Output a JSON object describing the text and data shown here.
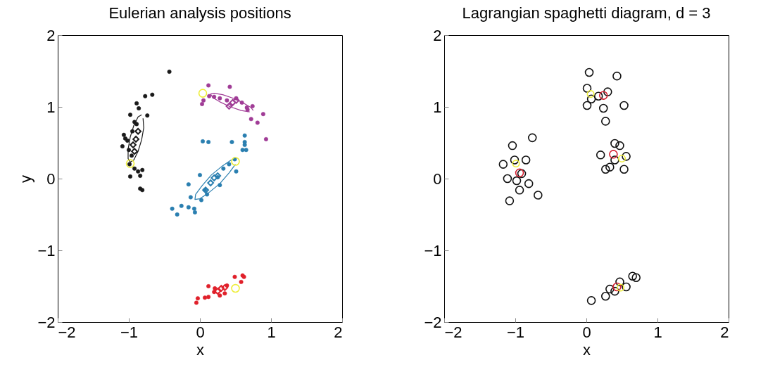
{
  "chart_data": [
    {
      "type": "scatter",
      "title": "Eulerian analysis positions",
      "xlabel": "x",
      "ylabel": "y",
      "xlim": [
        -2,
        2
      ],
      "ylim": [
        -2,
        2
      ],
      "xticks": [
        -2,
        -1,
        0,
        1,
        2
      ],
      "yticks": [
        -2,
        -1,
        0,
        1,
        2
      ],
      "series": [
        {
          "marker": "circle",
          "color": "#1a1a1a",
          "x": [
            -0.43,
            -0.77,
            -0.67,
            -0.89,
            -0.86,
            -0.74,
            -0.98,
            -0.92,
            -0.89,
            -0.95,
            -1.07,
            -1.05,
            -1.09,
            -1.0,
            -0.96,
            -0.99,
            -0.92,
            -0.81,
            -0.84,
            -0.98,
            -0.81,
            -0.84,
            -0.87,
            -1.02
          ],
          "values": [
            1.49,
            1.15,
            1.17,
            1.05,
            0.98,
            0.88,
            0.89,
            0.79,
            0.76,
            0.66,
            0.61,
            0.56,
            0.45,
            0.4,
            0.32,
            0.2,
            0.14,
            0.12,
            0.04,
            0.03,
            -0.16,
            -0.14,
            0.1,
            0.53
          ]
        },
        {
          "marker": "circle",
          "color": "#a03c96",
          "x": [
            0.12,
            0.42,
            0.03,
            0.05,
            0.2,
            0.28,
            0.38,
            0.51,
            0.59,
            0.66,
            0.74,
            0.89,
            0.72,
            0.81,
            0.93,
            0.13,
            0.67
          ],
          "values": [
            1.3,
            1.28,
            1.04,
            1.09,
            1.14,
            1.12,
            1.09,
            1.12,
            1.06,
            0.99,
            1.01,
            0.9,
            0.83,
            0.78,
            0.55,
            1.15,
            0.96
          ]
        },
        {
          "marker": "circle",
          "color": "#2a7fb0",
          "x": [
            0.04,
            0.12,
            0.45,
            0.63,
            0.63,
            0.63,
            0.65,
            0.6,
            0.49,
            0.51,
            0.41,
            0.33,
            0.25,
            0.28,
            0.0,
            -0.16,
            -0.13,
            0.02,
            -0.16,
            -0.26,
            -0.39,
            -0.32,
            -0.08,
            -0.07,
            0.07,
            0.1
          ],
          "values": [
            0.52,
            0.51,
            0.51,
            0.6,
            0.51,
            0.47,
            0.4,
            0.4,
            0.27,
            0.1,
            0.2,
            0.14,
            0.02,
            -0.09,
            0.05,
            -0.08,
            -0.26,
            -0.3,
            -0.4,
            -0.38,
            -0.42,
            -0.5,
            -0.42,
            -0.47,
            -0.16,
            -0.22
          ]
        },
        {
          "marker": "circle",
          "color": "#e0202a",
          "x": [
            -0.05,
            -0.03,
            0.07,
            0.12,
            0.12,
            0.2,
            0.49,
            0.6,
            0.62,
            0.58,
            0.38,
            0.28,
            0.35,
            0.21
          ],
          "values": [
            -1.73,
            -1.67,
            -1.66,
            -1.65,
            -1.5,
            -1.58,
            -1.37,
            -1.35,
            -1.37,
            -1.44,
            -1.49,
            -1.63,
            -1.6,
            -1.53
          ]
        },
        {
          "marker": "diamond",
          "color": "#1a1a1a",
          "x": [
            -0.87,
            -0.9,
            -0.94,
            -0.92
          ],
          "values": [
            0.66,
            0.55,
            0.47,
            0.38
          ]
        },
        {
          "marker": "diamond",
          "color": "#a03c96",
          "x": [
            0.41,
            0.46,
            0.51
          ],
          "values": [
            1.01,
            1.06,
            1.09
          ]
        },
        {
          "marker": "diamond",
          "color": "#2a7fb0",
          "x": [
            0.08,
            0.15,
            0.2,
            0.25
          ],
          "values": [
            -0.16,
            -0.06,
            0.01,
            0.04
          ]
        },
        {
          "marker": "diamond",
          "color": "#e0202a",
          "x": [
            0.25,
            0.3,
            0.35
          ],
          "values": [
            -1.57,
            -1.53,
            -1.52
          ]
        },
        {
          "type": "line",
          "color": "#1a1a1a",
          "x": [
            -0.82,
            -0.87,
            -0.93,
            -0.98,
            -1.01,
            -1.01,
            -0.98,
            -0.93,
            -0.87,
            -0.82,
            -0.79,
            -0.8
          ],
          "values": [
            0.89,
            0.86,
            0.74,
            0.58,
            0.41,
            0.28,
            0.23,
            0.26,
            0.38,
            0.54,
            0.71,
            0.84
          ]
        },
        {
          "type": "line",
          "color": "#a03c96",
          "x": [
            0.75,
            0.72,
            0.62,
            0.47,
            0.32,
            0.2,
            0.15,
            0.18,
            0.28,
            0.43,
            0.58,
            0.7
          ],
          "values": [
            0.95,
            0.99,
            1.05,
            1.12,
            1.17,
            1.19,
            1.18,
            1.13,
            1.07,
            1.0,
            0.95,
            0.93
          ]
        },
        {
          "type": "line",
          "color": "#2a7fb0",
          "x": [
            0.51,
            0.44,
            0.32,
            0.16,
            0.03,
            -0.06,
            -0.07,
            0.0,
            0.12,
            0.28,
            0.41,
            0.5
          ],
          "values": [
            0.27,
            0.26,
            0.18,
            0.05,
            -0.1,
            -0.22,
            -0.29,
            -0.28,
            -0.2,
            -0.07,
            0.08,
            0.2
          ]
        },
        {
          "type": "bubble",
          "color": "#eeee3a",
          "x": [
            0.04,
            -0.98,
            0.5,
            0.5
          ],
          "values": [
            1.19,
            0.21,
            0.24,
            -1.53
          ],
          "sizes": [
            1,
            1,
            1,
            1
          ]
        }
      ]
    },
    {
      "type": "bubble",
      "title": "Lagrangian spaghetti diagram, d = 3",
      "xlabel": "x",
      "xlim": [
        -2,
        2
      ],
      "ylim": [
        -2,
        2
      ],
      "xticks": [
        -2,
        -1,
        0,
        1,
        2
      ],
      "yticks": [
        -2,
        -1,
        0,
        1,
        2
      ],
      "series": [
        {
          "color": "#111111",
          "x": [
            -0.76,
            -1.04,
            -1.17,
            -1.08,
            -0.68,
            -0.91,
            -0.98,
            -0.85,
            -1.11,
            -0.81,
            -0.94,
            -1.01,
            0.04,
            0.43,
            0.01,
            0.53,
            0.01,
            0.27,
            0.17,
            0.3,
            0.24,
            0.07,
            0.4,
            0.56,
            0.33,
            0.2,
            0.4,
            0.53,
            0.27,
            0.47,
            0.07,
            0.33,
            0.65,
            0.47,
            0.4,
            0.56,
            0.27,
            0.7
          ],
          "values": [
            0.57,
            0.46,
            0.2,
            -0.31,
            -0.23,
            0.07,
            -0.03,
            0.26,
            0.0,
            -0.07,
            -0.16,
            0.26,
            1.48,
            1.43,
            1.26,
            1.02,
            1.02,
            0.8,
            1.15,
            1.21,
            0.98,
            1.11,
            0.49,
            0.31,
            0.16,
            0.33,
            0.26,
            0.13,
            0.13,
            0.46,
            -1.7,
            -1.54,
            -1.36,
            -1.44,
            -1.57,
            -1.51,
            -1.64,
            -1.38
          ],
          "sizes": [
            1,
            1,
            1,
            1,
            1,
            1,
            1,
            1,
            1,
            1,
            1,
            1,
            1,
            1,
            1,
            1,
            1,
            1,
            1,
            1,
            1,
            1,
            1,
            1,
            1,
            1,
            1,
            1,
            1,
            1,
            1,
            1,
            1,
            1,
            1,
            1,
            1,
            1
          ]
        },
        {
          "color": "#d42030",
          "x": [
            -0.94,
            0.24,
            0.38,
            0.43
          ],
          "values": [
            0.08,
            1.16,
            0.34,
            -1.51
          ],
          "sizes": [
            1,
            1,
            1,
            1
          ]
        },
        {
          "color": "#eeee3a",
          "x": [
            -0.99,
            0.06,
            0.5,
            0.48
          ],
          "values": [
            0.21,
            1.18,
            0.28,
            -1.52
          ],
          "sizes": [
            0.75,
            0.75,
            0.75,
            0.75
          ]
        }
      ]
    }
  ]
}
